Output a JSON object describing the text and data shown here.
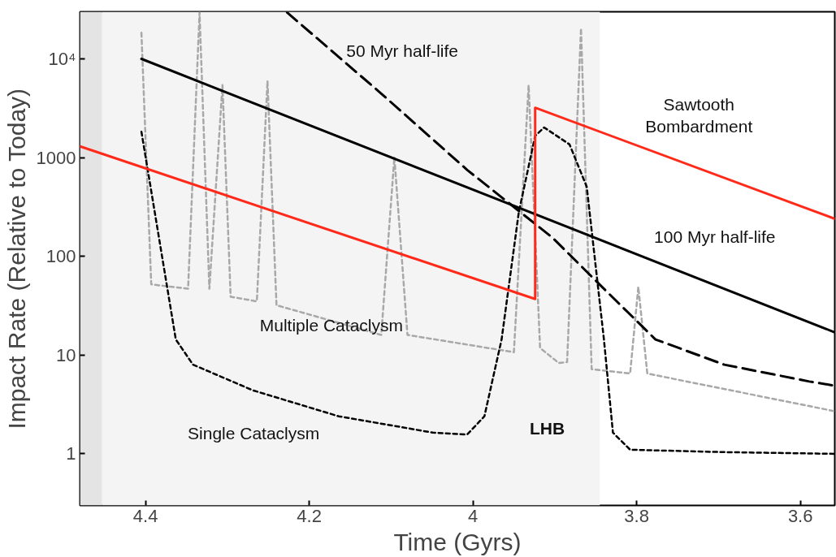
{
  "chart_data": {
    "type": "line",
    "xlabel": "Time (Gyrs)",
    "ylabel": "Impact Rate (Relative to Today)",
    "log": "y",
    "grid": false,
    "xlim": [
      4.48,
      3.558
    ],
    "ylim": [
      0.3,
      30000
    ],
    "xticks": [
      4.4,
      4.2,
      4,
      3.8,
      3.6
    ],
    "yticks": [
      1,
      10,
      100,
      1000,
      {
        "value": 10000,
        "label": "10⁴"
      }
    ],
    "bands": [
      {
        "axis": "x",
        "from": 4.48,
        "to": 4.453,
        "color": "#e4e4e4"
      },
      {
        "axis": "x",
        "from": 4.453,
        "to": 3.845,
        "color": "#f4f4f4"
      }
    ],
    "series": [
      {
        "color": "#a8a8a8",
        "line_style": "dotted",
        "x": [
          4.405,
          4.393,
          4.348,
          4.334,
          4.322,
          4.306,
          4.296,
          4.264,
          4.251,
          4.24,
          4.112,
          4.096,
          4.08,
          3.95,
          3.932,
          3.918,
          3.895,
          3.885,
          3.868,
          3.855,
          3.808,
          3.798,
          3.787,
          3.558
        ],
        "values": [
          18400,
          52,
          47,
          29500,
          47,
          5420,
          39,
          35,
          5980,
          32,
          16,
          1010,
          16,
          10.7,
          5420,
          11.8,
          8.3,
          8.5,
          20400,
          7.2,
          6.5,
          49,
          6.5,
          2.7
        ]
      },
      {
        "color": "#000000",
        "line_style": "dotted",
        "x": [
          4.405,
          4.363,
          4.342,
          4.269,
          4.164,
          4.049,
          4.007,
          3.986,
          3.965,
          3.944,
          3.924,
          3.913,
          3.882,
          3.861,
          3.84,
          3.829,
          3.808,
          3.693,
          3.558
        ],
        "values": [
          1830,
          14.4,
          8,
          4.4,
          2.4,
          1.64,
          1.57,
          2.4,
          14.4,
          280,
          1660,
          2020,
          1360,
          506,
          14.4,
          1.64,
          1.1,
          1.04,
          1.0
        ]
      },
      {
        "color": "#000000",
        "line_style": "dashed",
        "x": [
          4.227,
          4.112,
          4.007,
          3.903,
          3.84,
          3.777,
          3.693,
          3.589,
          3.558
        ],
        "values": [
          29500,
          4450,
          750,
          155,
          47,
          14.4,
          8,
          5.4,
          4.9
        ]
      },
      {
        "color": "#000000",
        "line_style": "solid",
        "x": [
          4.405,
          3.558
        ],
        "values": [
          10000,
          17
        ]
      },
      {
        "color": "#ff2a1a",
        "line_style": "solid",
        "x": [
          4.48,
          3.924,
          3.924,
          3.558
        ],
        "values": [
          1300,
          37,
          3200,
          240
        ]
      }
    ],
    "annotations": [
      "50 Myr half-life",
      "Sawtooth\nBombardment",
      "100 Myr half-life",
      "Multiple Cataclysm",
      "Single Cataclysm",
      "LHB"
    ]
  }
}
